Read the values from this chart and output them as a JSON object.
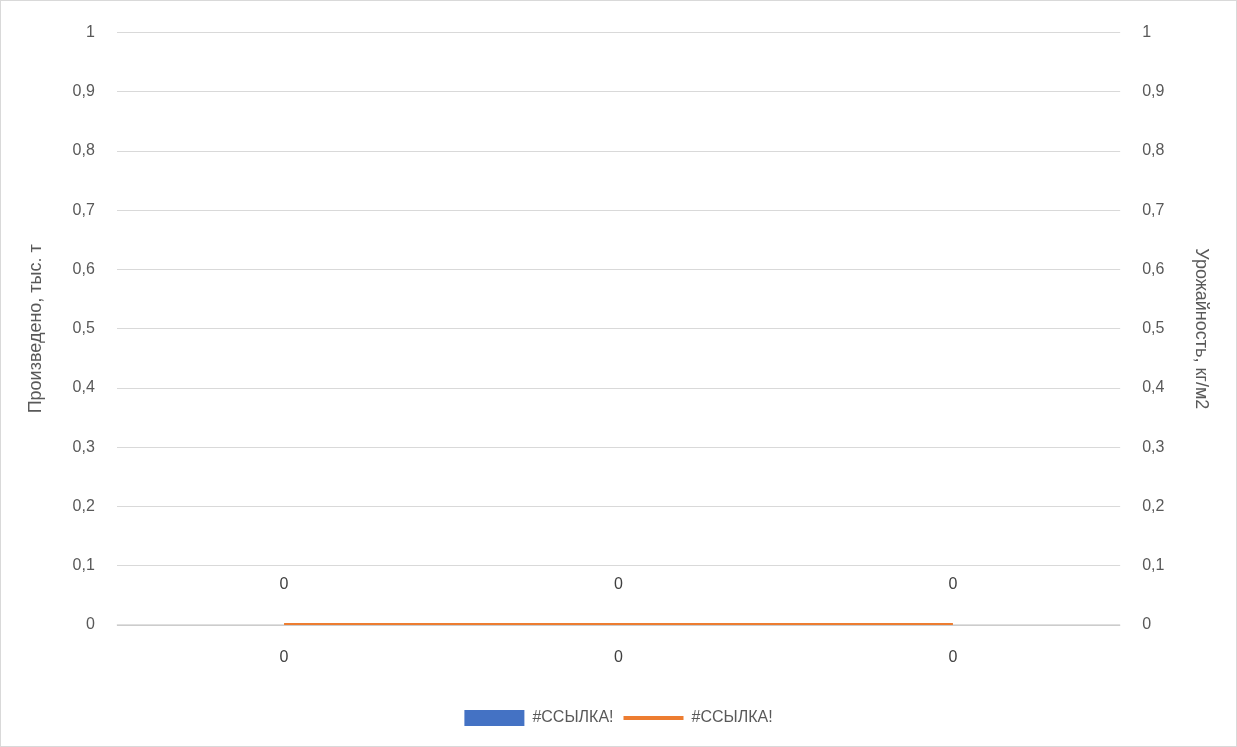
{
  "chart_data": {
    "type": "bar",
    "ylabel": "Произведено, тыс. т",
    "y2label": "Урожайность, кг/м2",
    "categories": [
      null,
      null,
      null
    ],
    "series": [
      {
        "name": "#ССЫЛКА!",
        "color": "#4472c4",
        "values": [
          0,
          0,
          0
        ]
      },
      {
        "name": "#ССЫЛКА!",
        "type": "line",
        "axis": "y2",
        "color": "#ed7d31",
        "values": [
          0,
          0,
          0
        ]
      }
    ],
    "ylim": [
      0,
      1
    ],
    "yticks": [
      0,
      {
        "value": 0.1,
        "label": "0,1"
      },
      {
        "value": 0.2,
        "label": "0,2"
      },
      {
        "value": 0.3,
        "label": "0,3"
      },
      {
        "value": 0.4,
        "label": "0,4"
      },
      {
        "value": 0.5,
        "label": "0,5"
      },
      {
        "value": 0.6,
        "label": "0,6"
      },
      {
        "value": 0.7,
        "label": "0,7"
      },
      {
        "value": 0.8,
        "label": "0,8"
      },
      {
        "value": 0.9,
        "label": "0,9"
      },
      1
    ],
    "y2lim": [
      0,
      1
    ],
    "y2ticks": [
      0,
      {
        "value": 0.1,
        "label": "0,1"
      },
      {
        "value": 0.2,
        "label": "0,2"
      },
      {
        "value": 0.3,
        "label": "0,3"
      },
      {
        "value": 0.4,
        "label": "0,4"
      },
      {
        "value": 0.5,
        "label": "0,5"
      },
      {
        "value": 0.6,
        "label": "0,6"
      },
      {
        "value": 0.7,
        "label": "0,7"
      },
      {
        "value": 0.8,
        "label": "0,8"
      },
      {
        "value": 0.9,
        "label": "0,9"
      },
      1
    ],
    "grid": "y",
    "legend": "bottom",
    "data_labels": true,
    "marker": "none"
  }
}
